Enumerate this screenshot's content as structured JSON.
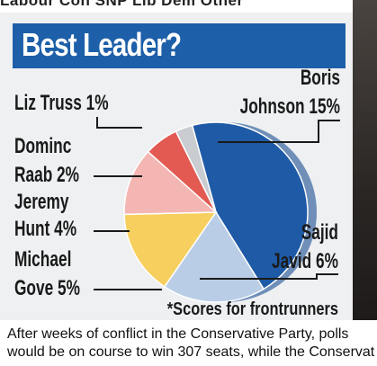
{
  "top_strip_text": "Labour  Con  SNP  Lib Dem  Other",
  "title": "Best Leader?",
  "footnote": "*Scores for frontrunners",
  "chart_data": {
    "type": "pie",
    "title": "Best Leader?",
    "slices": [
      {
        "label_lines": [
          "Boris",
          "Johnson 15%"
        ],
        "name": "Boris Johnson",
        "value": 15,
        "color": "#1e5aa6"
      },
      {
        "label_lines": [
          "Sajid",
          "Javid 6%"
        ],
        "name": "Sajid Javid",
        "value": 6,
        "color": "#b9cde6"
      },
      {
        "label_lines": [
          "Michael",
          "Gove 5%"
        ],
        "name": "Michael Gove",
        "value": 5,
        "color": "#f7cf5e"
      },
      {
        "label_lines": [
          "Jeremy",
          "Hunt 4%"
        ],
        "name": "Jeremy Hunt",
        "value": 4,
        "color": "#f4b6b2"
      },
      {
        "label_lines": [
          "Dominc",
          "Raab 2%"
        ],
        "name": "Dominc Raab",
        "value": 2,
        "color": "#e25a52"
      },
      {
        "label_lines": [
          "Liz Truss 1%"
        ],
        "name": "Liz Truss",
        "value": 1,
        "color": "#c9ccd1"
      }
    ],
    "note": "*Scores for frontrunners"
  },
  "caption_lines": [
    "After weeks of conflict in the Conservative Party, polls",
    "would be on course to win 307 seats, while the Conservat"
  ]
}
